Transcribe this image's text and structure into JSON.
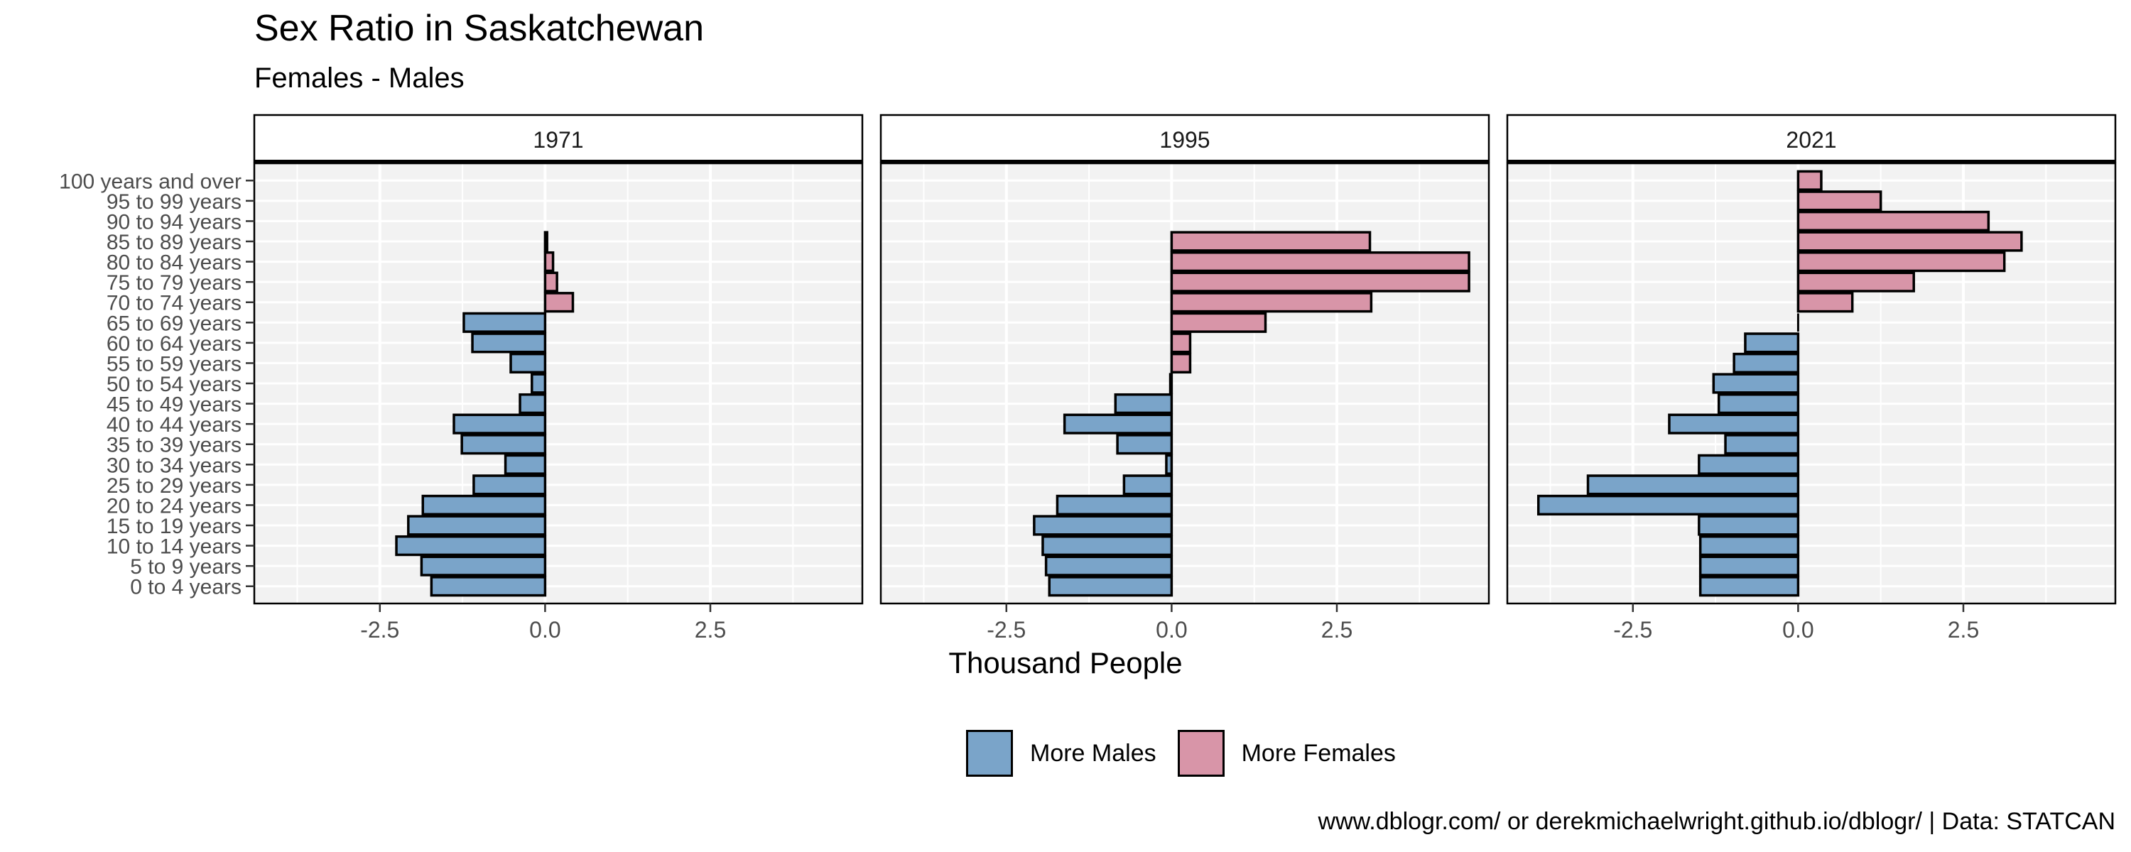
{
  "title": "Sex Ratio in Saskatchewan",
  "subtitle": "Females - Males",
  "caption": "www.dblogr.com/ or derekmichaelwright.github.io/dblogr/ | Data: STATCAN",
  "colors": {
    "more_males": "#7aa4c9",
    "more_females": "#d895a8",
    "panel_bg": "#f2f2f2"
  },
  "legend": [
    {
      "label": "More Males",
      "color": "#7aa4c9"
    },
    {
      "label": "More Females",
      "color": "#d895a8"
    }
  ],
  "chart_data": {
    "type": "bar",
    "orientation": "horizontal",
    "title": "Sex Ratio in Saskatchewan",
    "subtitle": "Females - Males",
    "xlabel": "Thousand People",
    "ylabel": "",
    "xlim": [
      -4.4,
      4.8
    ],
    "xticks": [
      "-2.5",
      "0.0",
      "2.5"
    ],
    "xtick_values": [
      -2.5,
      0,
      2.5
    ],
    "grid": true,
    "legend_position": "bottom",
    "categories": [
      "0 to 4 years",
      "5 to 9 years",
      "10 to 14 years",
      "15 to 19 years",
      "20 to 24 years",
      "25 to 29 years",
      "30 to 34 years",
      "35 to 39 years",
      "40 to 44 years",
      "45 to 49 years",
      "50 to 54 years",
      "55 to 59 years",
      "60 to 64 years",
      "65 to 69 years",
      "70 to 74 years",
      "75 to 79 years",
      "80 to 84 years",
      "85 to 89 years",
      "90 to 94 years",
      "95 to 99 years",
      "100 years and over"
    ],
    "panels": [
      {
        "name": "1971",
        "values": [
          -1.72,
          -1.87,
          -2.25,
          -2.07,
          -1.85,
          -1.08,
          -0.6,
          -1.26,
          -1.38,
          -0.38,
          -0.2,
          -0.52,
          -1.1,
          -1.23,
          0.42,
          0.18,
          0.12,
          0.03,
          null,
          null,
          null
        ]
      },
      {
        "name": "1995",
        "values": [
          -1.85,
          -1.9,
          -1.95,
          -2.08,
          -1.73,
          -0.72,
          -0.08,
          -0.82,
          -1.62,
          -0.85,
          -0.02,
          0.28,
          0.28,
          1.42,
          3.02,
          4.5,
          4.5,
          3.0,
          null,
          null,
          null
        ]
      },
      {
        "name": "2021",
        "values": [
          -1.48,
          -1.48,
          -1.48,
          -1.5,
          -3.93,
          -3.18,
          -1.5,
          -1.1,
          -1.95,
          -1.2,
          -1.28,
          -0.97,
          -0.8,
          0,
          0.82,
          1.75,
          3.12,
          3.38,
          2.88,
          1.25,
          0.35
        ]
      }
    ]
  }
}
